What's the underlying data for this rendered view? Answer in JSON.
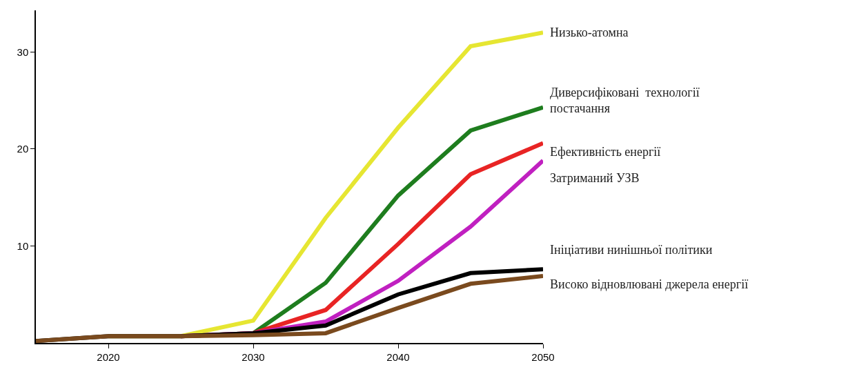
{
  "chart_data": {
    "type": "line",
    "x": [
      2015,
      2020,
      2025,
      2030,
      2035,
      2040,
      2045,
      2050
    ],
    "series": [
      {
        "name": "Низько-атомна",
        "color": "#e6e632",
        "values": [
          null,
          0.7,
          0.7,
          2.3,
          12.9,
          22.2,
          30.6,
          32.0
        ]
      },
      {
        "name": "Диверсифіковані  технології\nпостачання",
        "color": "#1e7d1e",
        "values": [
          null,
          null,
          0.7,
          1.0,
          6.2,
          15.2,
          21.9,
          24.3
        ]
      },
      {
        "name": "Ефективність енергії",
        "color": "#e82424",
        "values": [
          null,
          null,
          0.7,
          1.0,
          3.4,
          10.2,
          17.4,
          20.6
        ]
      },
      {
        "name": "Затриманий УЗВ",
        "color": "#c020c0",
        "values": [
          null,
          null,
          0.7,
          1.0,
          2.2,
          6.4,
          12.0,
          18.8
        ]
      },
      {
        "name": "Ініціативи нинішньої політики",
        "color": "#000000",
        "values": [
          0.2,
          0.7,
          0.7,
          1.0,
          1.8,
          5.0,
          7.2,
          7.6
        ]
      },
      {
        "name": "Високо відновлювані джерела енергії",
        "color": "#7a4a1e",
        "values": [
          0.2,
          0.7,
          0.7,
          0.8,
          1.0,
          3.6,
          6.1,
          6.9
        ]
      }
    ],
    "xlim": [
      2015,
      2050
    ],
    "ylim": [
      0,
      34.3
    ],
    "xticks": [
      2020,
      2030,
      2040,
      2050
    ],
    "yticks": [
      10,
      20,
      30
    ],
    "legend": false,
    "marker": "none",
    "line_style": "solid"
  }
}
